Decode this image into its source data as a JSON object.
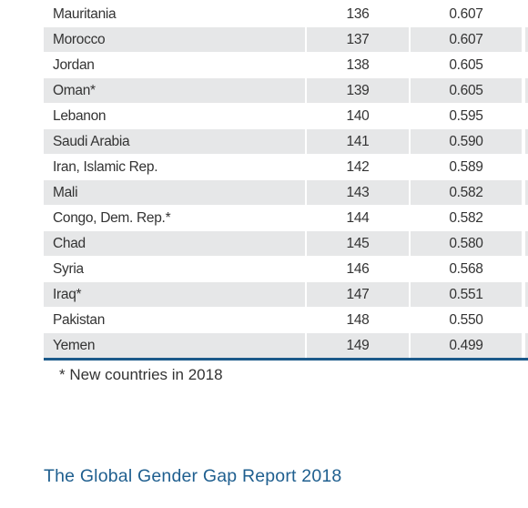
{
  "table": {
    "rows": [
      [
        "Mauritania",
        136,
        "0.607"
      ],
      [
        "Morocco",
        137,
        "0.607"
      ],
      [
        "Jordan",
        138,
        "0.605"
      ],
      [
        "Oman*",
        139,
        "0.605"
      ],
      [
        "Lebanon",
        140,
        "0.595"
      ],
      [
        "Saudi Arabia",
        141,
        "0.590"
      ],
      [
        "Iran, Islamic Rep.",
        142,
        "0.589"
      ],
      [
        "Mali",
        143,
        "0.582"
      ],
      [
        "Congo, Dem. Rep.*",
        144,
        "0.582"
      ],
      [
        "Chad",
        145,
        "0.580"
      ],
      [
        "Syria",
        146,
        "0.568"
      ],
      [
        "Iraq*",
        147,
        "0.551"
      ],
      [
        "Pakistan",
        148,
        "0.550"
      ],
      [
        "Yemen",
        149,
        "0.499"
      ]
    ]
  },
  "footnote": "* New countries in 2018",
  "footer": {
    "title": "The Global Gender Gap Report 2018"
  }
}
